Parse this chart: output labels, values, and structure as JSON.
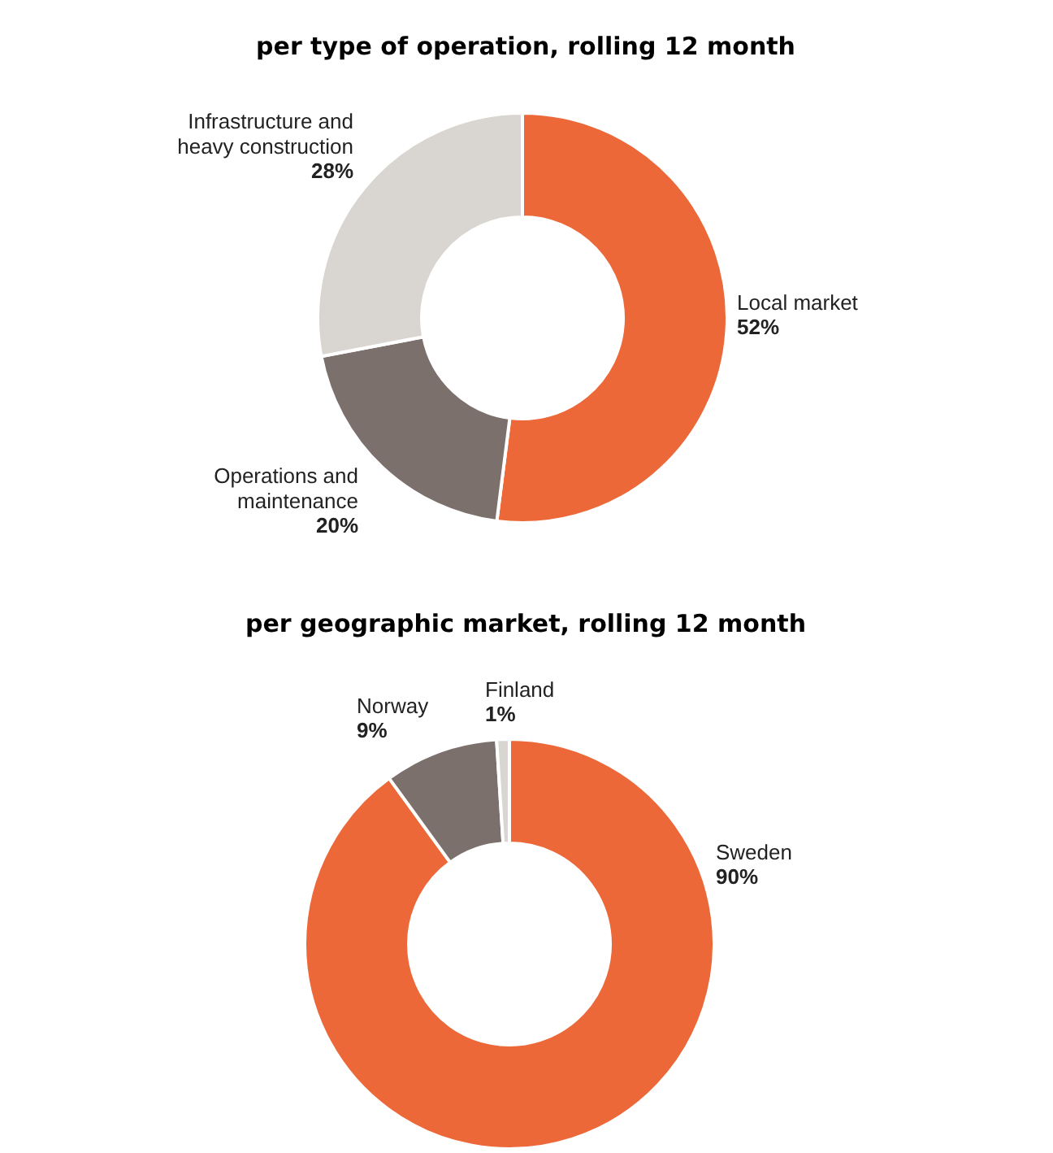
{
  "chart_data": [
    {
      "type": "donut",
      "title": "per type of operation, rolling 12 month",
      "categories": [
        "Local market",
        "Operations and\nmaintenance",
        "Infrastructure and\nheavy construction"
      ],
      "values": [
        52,
        20,
        28
      ],
      "colors": [
        "#ec6839",
        "#7c706d",
        "#d9d5d1"
      ],
      "value_labels": [
        "52%",
        "20%",
        "28%"
      ]
    },
    {
      "type": "donut",
      "title": "per geographic market, rolling 12 month",
      "categories": [
        "Sweden",
        "Norway",
        "Finland"
      ],
      "values": [
        90,
        9,
        1
      ],
      "colors": [
        "#ec6839",
        "#7c706d",
        "#d9d5d1"
      ],
      "value_labels": [
        "90%",
        "9%",
        "1%"
      ]
    }
  ]
}
